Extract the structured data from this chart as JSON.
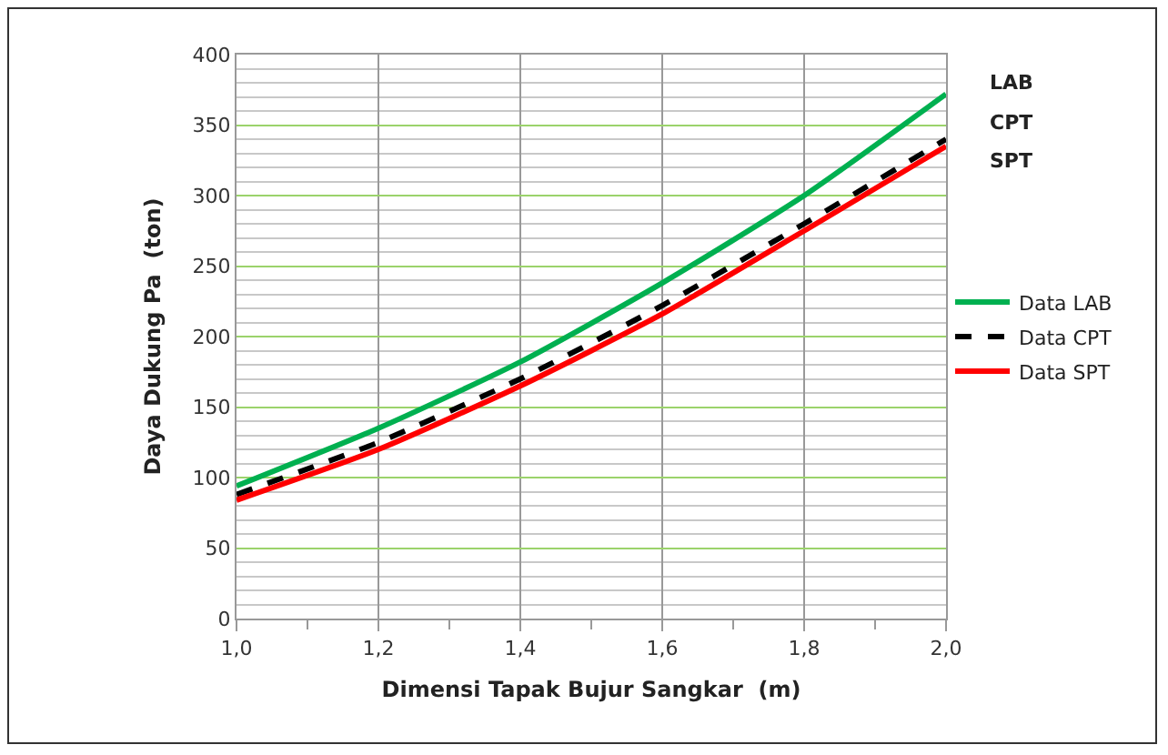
{
  "chart_data": {
    "type": "line",
    "xlabel": "Dimensi Tapak Bujur Sangkar  (m)",
    "ylabel": "Daya Dukung Pa  (ton)",
    "x": [
      1.0,
      1.2,
      1.4,
      1.6,
      1.8,
      2.0
    ],
    "series": [
      {
        "name": "Data LAB",
        "color": "#00b050",
        "line_style": "solid",
        "values": [
          94,
          135,
          182,
          238,
          300,
          372
        ]
      },
      {
        "name": "Data CPT",
        "color": "#000000",
        "line_style": "dashed",
        "values": [
          88,
          125,
          170,
          222,
          280,
          340
        ]
      },
      {
        "name": "Data SPT",
        "color": "#ff0000",
        "line_style": "solid",
        "values": [
          84,
          120,
          165,
          216,
          275,
          335
        ]
      }
    ],
    "xlim": [
      1.0,
      2.0
    ],
    "xticks": [
      {
        "value": 1.0,
        "label": "1,0"
      },
      {
        "value": 1.2,
        "label": "1,2"
      },
      {
        "value": 1.4,
        "label": "1,4"
      },
      {
        "value": 1.6,
        "label": "1,6"
      },
      {
        "value": 1.8,
        "label": "1,8"
      },
      {
        "value": 2.0,
        "label": "2,0"
      }
    ],
    "ylim": [
      0,
      400
    ],
    "yticks": [
      0,
      50,
      100,
      150,
      200,
      250,
      300,
      350,
      400
    ],
    "grid": true,
    "legend": "right",
    "marker": "none",
    "annotations": [
      "LAB",
      "CPT",
      "SPT"
    ]
  }
}
